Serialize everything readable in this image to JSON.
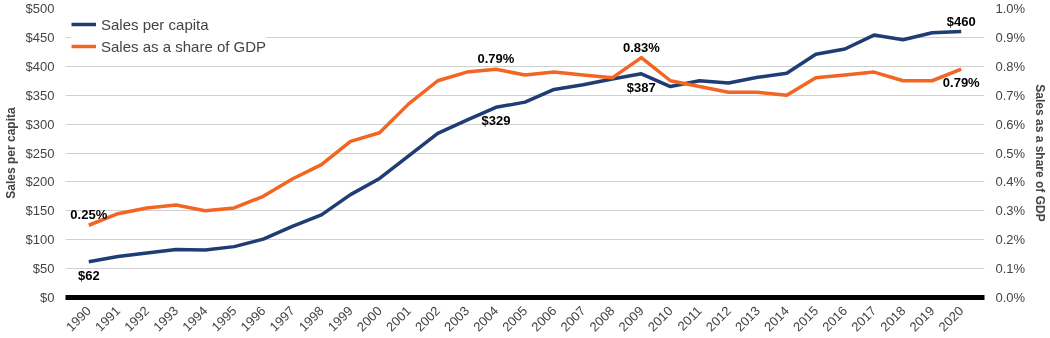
{
  "chart_data": {
    "type": "line",
    "xlabel": null,
    "ylabel": "Sales per capita",
    "y2label": "Sales as a share of GDP",
    "categories": [
      "1990",
      "1991",
      "1992",
      "1993",
      "1994",
      "1995",
      "1996",
      "1997",
      "1998",
      "1999",
      "2000",
      "2001",
      "2002",
      "2003",
      "2004",
      "2005",
      "2006",
      "2007",
      "2008",
      "2009",
      "2010",
      "2011",
      "2012",
      "2013",
      "2014",
      "2015",
      "2016",
      "2017",
      "2018",
      "2019",
      "2020"
    ],
    "series": [
      {
        "name": "Sales per capita",
        "color": "#1f3c74",
        "values": [
          62,
          71,
          77,
          83,
          82,
          88,
          101,
          123,
          143,
          178,
          206,
          245,
          284,
          307,
          329,
          338,
          360,
          368,
          378,
          387,
          365,
          375,
          371,
          381,
          388,
          421,
          430,
          454,
          446,
          458,
          460
        ],
        "value_labels": [
          "$62",
          null,
          null,
          null,
          null,
          null,
          null,
          null,
          null,
          null,
          null,
          null,
          null,
          null,
          "$329",
          null,
          null,
          null,
          null,
          "$387",
          null,
          null,
          null,
          null,
          null,
          null,
          null,
          null,
          null,
          null,
          "$460"
        ]
      },
      {
        "name": "Sales as a share of GDP",
        "color": "#f26522",
        "axis": "y2",
        "values": [
          0.25,
          0.29,
          0.31,
          0.32,
          0.3,
          0.31,
          0.35,
          0.41,
          0.46,
          0.54,
          0.57,
          0.67,
          0.75,
          0.78,
          0.79,
          0.77,
          0.78,
          0.77,
          0.76,
          0.83,
          0.75,
          0.73,
          0.71,
          0.71,
          0.7,
          0.76,
          0.77,
          0.78,
          0.75,
          0.75,
          0.79
        ],
        "value_labels": [
          "0.25%",
          null,
          null,
          null,
          null,
          null,
          null,
          null,
          null,
          null,
          null,
          null,
          null,
          null,
          "0.79%",
          null,
          null,
          null,
          null,
          "0.83%",
          null,
          null,
          null,
          null,
          null,
          null,
          null,
          null,
          null,
          null,
          "0.79%"
        ]
      }
    ],
    "ylim": [
      0,
      500
    ],
    "yticks": [
      {
        "value": 0,
        "label": "$0"
      },
      {
        "value": 50,
        "label": "$50"
      },
      {
        "value": 100,
        "label": "$100"
      },
      {
        "value": 150,
        "label": "$150"
      },
      {
        "value": 200,
        "label": "$200"
      },
      {
        "value": 250,
        "label": "$250"
      },
      {
        "value": 300,
        "label": "$300"
      },
      {
        "value": 350,
        "label": "$350"
      },
      {
        "value": 400,
        "label": "$400"
      },
      {
        "value": 450,
        "label": "$450"
      },
      {
        "value": 500,
        "label": "$500"
      }
    ],
    "y2lim": [
      0,
      1.0
    ],
    "y2ticks": [
      {
        "value": 0,
        "label": "0.0%"
      },
      {
        "value": 0.1,
        "label": "0.1%"
      },
      {
        "value": 0.2,
        "label": "0.2%"
      },
      {
        "value": 0.3,
        "label": "0.3%"
      },
      {
        "value": 0.4,
        "label": "0.4%"
      },
      {
        "value": 0.5,
        "label": "0.5%"
      },
      {
        "value": 0.6,
        "label": "0.6%"
      },
      {
        "value": 0.7,
        "label": "0.7%"
      },
      {
        "value": 0.8,
        "label": "0.8%"
      },
      {
        "value": 0.9,
        "label": "0.9%"
      },
      {
        "value": 1.0,
        "label": "1.0%"
      }
    ],
    "grid": "y",
    "legend": "top left",
    "line_style": "solid",
    "marker": "none"
  }
}
